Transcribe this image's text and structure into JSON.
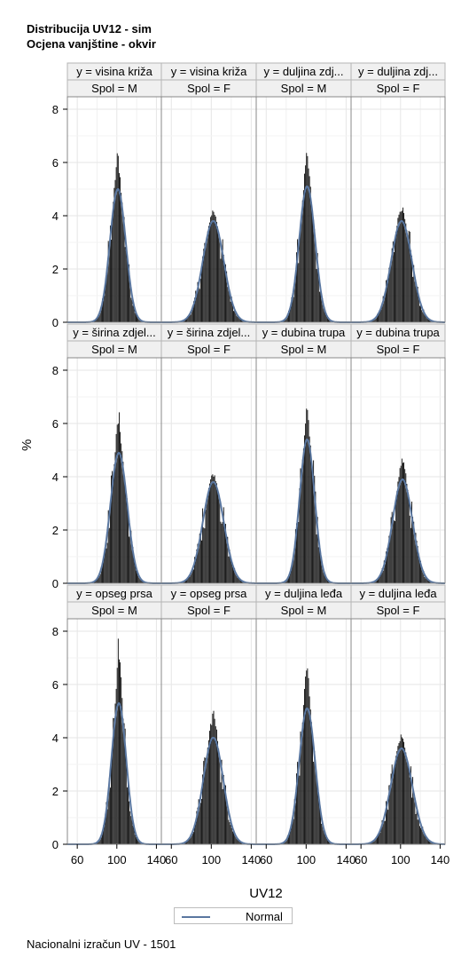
{
  "title_line1": "Distribucija UV12 - sim",
  "title_line2": "Ocjena vanjštine - okvir",
  "footnote": "Nacionalni izračun UV - 1501",
  "colors": {
    "bars": "#000000",
    "curve": "#5a77a0",
    "header_bg": "#f0f0f0",
    "grid": "#e6e6e6",
    "frame": "#888888"
  },
  "chart_data": {
    "type": "histogram-panel",
    "xlabel": "UV12",
    "ylabel": "%",
    "legend": [
      {
        "name": "Normal",
        "style": "line"
      }
    ],
    "xlim": [
      50,
      145
    ],
    "ylim": [
      0,
      8.2
    ],
    "xticks": [
      60,
      100,
      140
    ],
    "yticks": [
      0,
      2,
      4,
      6,
      8
    ],
    "panels": [
      {
        "y": "y = visina križa",
        "spol": "Spol = M",
        "mean": 101,
        "sd": 8,
        "normal_peak": 5.0,
        "bar_peak": 6.6
      },
      {
        "y": "y = visina križa",
        "spol": "Spol = F",
        "mean": 102,
        "sd": 10.5,
        "normal_peak": 3.8,
        "bar_peak": 4.3
      },
      {
        "y": "y = duljina zdj...",
        "spol": "Spol = M",
        "mean": 101,
        "sd": 8,
        "normal_peak": 5.1,
        "bar_peak": 6.5
      },
      {
        "y": "y = duljina zdj...",
        "spol": "Spol = F",
        "mean": 101,
        "sd": 10.5,
        "normal_peak": 3.8,
        "bar_peak": 4.5
      },
      {
        "y": "y = širina zdjel...",
        "spol": "Spol = M",
        "mean": 102,
        "sd": 8.5,
        "normal_peak": 4.9,
        "bar_peak": 6.6
      },
      {
        "y": "y = širina zdjel...",
        "spol": "Spol = F",
        "mean": 102,
        "sd": 10.5,
        "normal_peak": 3.8,
        "bar_peak": 4.2
      },
      {
        "y": "y = dubina trupa",
        "spol": "Spol = M",
        "mean": 101,
        "sd": 7.5,
        "normal_peak": 5.4,
        "bar_peak": 6.7
      },
      {
        "y": "y = dubina trupa",
        "spol": "Spol = F",
        "mean": 102,
        "sd": 10,
        "normal_peak": 3.9,
        "bar_peak": 4.9
      },
      {
        "y": "y = opseg prsa",
        "spol": "Spol = M",
        "mean": 102,
        "sd": 7.5,
        "normal_peak": 5.3,
        "bar_peak": 8.2
      },
      {
        "y": "y = opseg prsa",
        "spol": "Spol = F",
        "mean": 102,
        "sd": 10,
        "normal_peak": 4.0,
        "bar_peak": 5.2
      },
      {
        "y": "y = duljina leđa",
        "spol": "Spol = M",
        "mean": 101,
        "sd": 8,
        "normal_peak": 5.1,
        "bar_peak": 7.3
      },
      {
        "y": "y = duljina leđa",
        "spol": "Spol = F",
        "mean": 101,
        "sd": 11,
        "normal_peak": 3.6,
        "bar_peak": 4.2
      }
    ]
  }
}
